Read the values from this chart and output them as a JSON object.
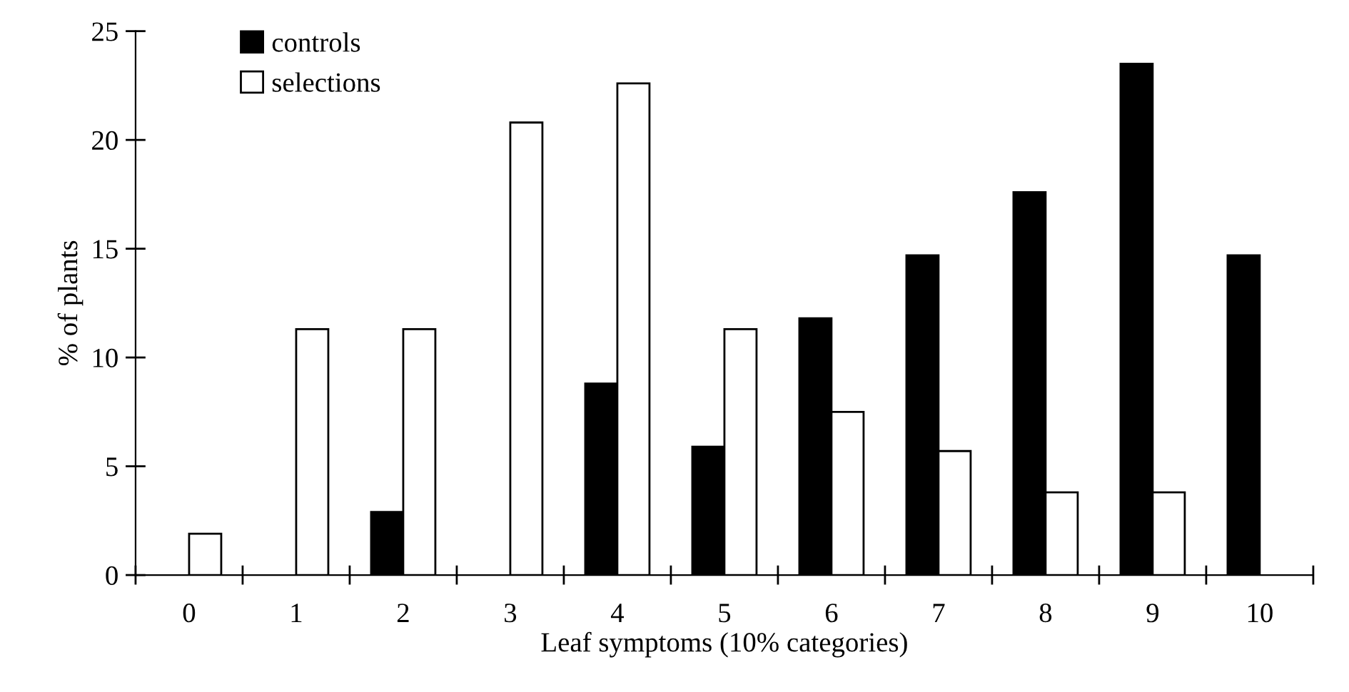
{
  "chart_data": {
    "type": "bar",
    "xlabel": "Leaf symptoms (10% categories)",
    "ylabel": "% of plants",
    "categories": [
      "0",
      "1",
      "2",
      "3",
      "4",
      "5",
      "6",
      "7",
      "8",
      "9",
      "10"
    ],
    "series": [
      {
        "name": "controls",
        "color": "#000000",
        "values": [
          0,
          0,
          2.9,
          0,
          8.8,
          5.9,
          11.8,
          14.7,
          17.6,
          23.5,
          14.7
        ]
      },
      {
        "name": "selections",
        "color": "#ffffff",
        "values": [
          1.9,
          11.3,
          11.3,
          20.8,
          22.6,
          11.3,
          7.5,
          5.7,
          3.8,
          3.8,
          0
        ]
      }
    ],
    "ylim": [
      0,
      25
    ],
    "yticks": [
      0,
      5,
      10,
      15,
      20,
      25
    ],
    "grid": false,
    "legend": "top left"
  }
}
